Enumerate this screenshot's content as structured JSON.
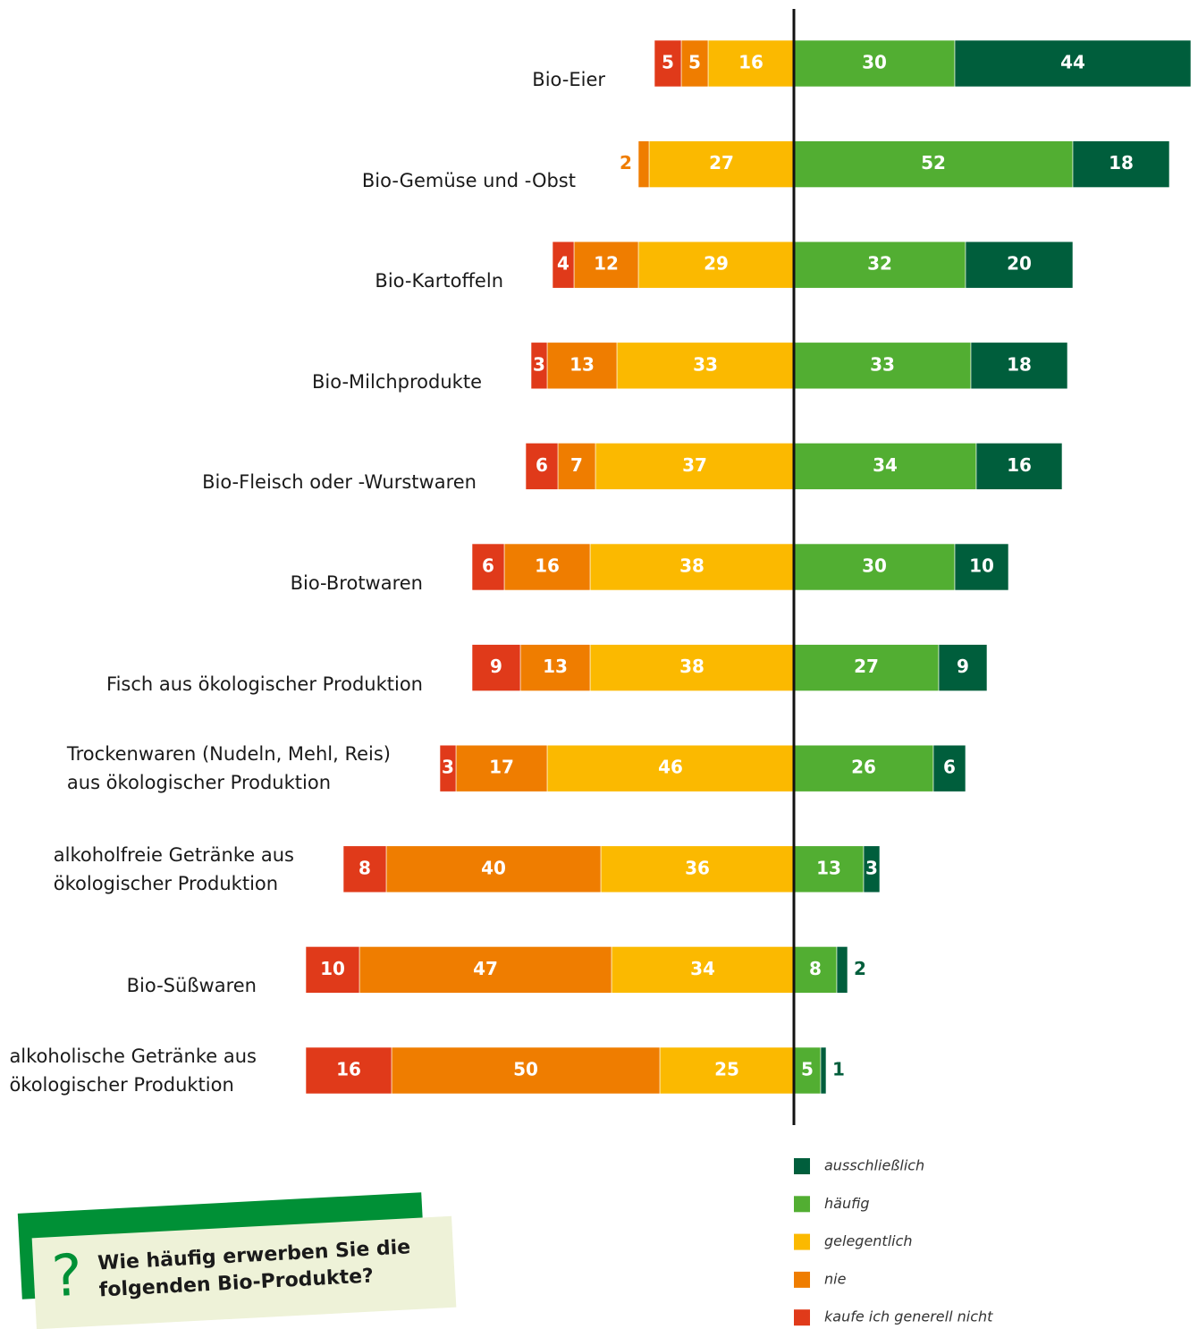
{
  "chart_data": {
    "type": "bar",
    "categories": [
      "Bio-Eier",
      "Bio-Gemüse und -Obst",
      "Bio-Kartoffeln",
      "Bio-Milchprodukte",
      "Bio-Fleisch oder -Wurstwaren",
      "Bio-Brotwaren",
      "Fisch aus ökologischer Produktion",
      "Trockenwaren (Nudeln, Mehl, Reis)\naus ökologischer Produktion",
      "alkoholfreie Getränke aus\nökologischer Produktion",
      "Bio-Süßwaren",
      "alkoholische Getränke aus\nökologischer Produktion"
    ],
    "series": [
      {
        "name": "kaufe ich generell nicht",
        "color": "#e03a1a",
        "side": "left",
        "values": [
          5,
          null,
          4,
          3,
          6,
          6,
          9,
          3,
          8,
          10,
          16
        ]
      },
      {
        "name": "nie",
        "color": "#ef7d00",
        "side": "left",
        "values": [
          5,
          2,
          12,
          13,
          7,
          16,
          13,
          17,
          40,
          47,
          50
        ]
      },
      {
        "name": "gelegentlich",
        "color": "#fbb900",
        "side": "left",
        "values": [
          16,
          27,
          29,
          33,
          37,
          38,
          38,
          46,
          36,
          34,
          25
        ]
      },
      {
        "name": "häufig",
        "color": "#52ae32",
        "side": "right",
        "values": [
          30,
          52,
          32,
          33,
          34,
          30,
          27,
          26,
          13,
          8,
          5
        ]
      },
      {
        "name": "ausschließlich",
        "color": "#005e3c",
        "side": "right",
        "values": [
          44,
          18,
          20,
          18,
          16,
          10,
          9,
          6,
          3,
          2,
          1
        ]
      }
    ],
    "question": "Wie häufig erwerben Sie die\nfolgenden Bio-Produkte?"
  }
}
